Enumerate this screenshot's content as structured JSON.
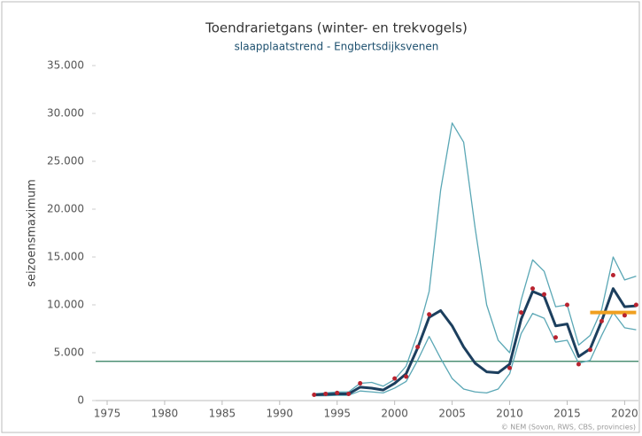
{
  "chart_data": {
    "type": "line",
    "title": "Toendrarietgans (winter- en trekvogels)",
    "subtitle": "slaapplaatstrend - Engbertsdijksvenen",
    "ylabel": "seizoensmaximum",
    "credit": "© NEM (Sovon, RWS, CBS, provincies)",
    "x": [
      1993,
      1994,
      1995,
      1996,
      1997,
      1998,
      1999,
      2000,
      2001,
      2002,
      2003,
      2004,
      2005,
      2006,
      2007,
      2008,
      2009,
      2010,
      2011,
      2012,
      2013,
      2014,
      2015,
      2016,
      2017,
      2018,
      2019,
      2020,
      2021
    ],
    "series": [
      {
        "color": "#5aa7b5",
        "style": "line",
        "values": [
          700,
          800,
          900,
          900,
          1800,
          1900,
          1500,
          2200,
          3600,
          7000,
          11400,
          22000,
          29000,
          27000,
          18000,
          10000,
          6300,
          5000,
          10500,
          14700,
          13500,
          9800,
          10000,
          5800,
          6800,
          9500,
          15000,
          12600,
          13000
        ]
      },
      {
        "color": "#5aa7b5",
        "style": "line",
        "values": [
          500,
          500,
          550,
          550,
          1000,
          900,
          800,
          1300,
          2000,
          4200,
          6700,
          4400,
          2300,
          1200,
          900,
          800,
          1200,
          2800,
          7000,
          9100,
          8600,
          6100,
          6300,
          3900,
          4200,
          6800,
          9200,
          7600,
          7400
        ]
      },
      {
        "color": "#1c3f5e",
        "style": "line",
        "width": 3,
        "values": [
          600,
          650,
          700,
          700,
          1400,
          1300,
          1100,
          1800,
          2800,
          5500,
          8700,
          9400,
          7800,
          5600,
          3900,
          3000,
          2900,
          3800,
          8500,
          11400,
          10900,
          7800,
          8000,
          4600,
          5400,
          8300,
          11700,
          9800,
          9900
        ]
      },
      {
        "color": "#f0a020",
        "style": "line",
        "width": 4,
        "values": [
          null,
          null,
          null,
          null,
          null,
          null,
          null,
          null,
          null,
          null,
          null,
          null,
          null,
          null,
          null,
          null,
          null,
          null,
          null,
          null,
          null,
          null,
          null,
          null,
          9200,
          9200,
          9200,
          9200,
          9200
        ]
      },
      {
        "color": "#b8232f",
        "style": "dots",
        "values": [
          600,
          700,
          800,
          700,
          1800,
          null,
          null,
          2300,
          2500,
          5600,
          9000,
          null,
          null,
          null,
          null,
          null,
          null,
          3400,
          9200,
          11700,
          11100,
          6600,
          10000,
          3800,
          5300,
          8300,
          13100,
          8900,
          10000
        ]
      }
    ],
    "hline": {
      "value": 4100,
      "color": "#2e7d5b"
    },
    "xlim": [
      1974,
      2021.2
    ],
    "xticks": [
      1975,
      1980,
      1985,
      1990,
      1995,
      2000,
      2005,
      2010,
      2015,
      2020
    ],
    "ylim": [
      0,
      35000
    ],
    "yticks": [
      0,
      {
        "value": 5000,
        "label": "5.000"
      },
      {
        "value": 10000,
        "label": "10.000"
      },
      {
        "value": 15000,
        "label": "15.000"
      },
      {
        "value": 20000,
        "label": "20.000"
      },
      {
        "value": 25000,
        "label": "25.000"
      },
      {
        "value": 30000,
        "label": "30.000"
      },
      {
        "value": 35000,
        "label": "35.000"
      }
    ]
  }
}
